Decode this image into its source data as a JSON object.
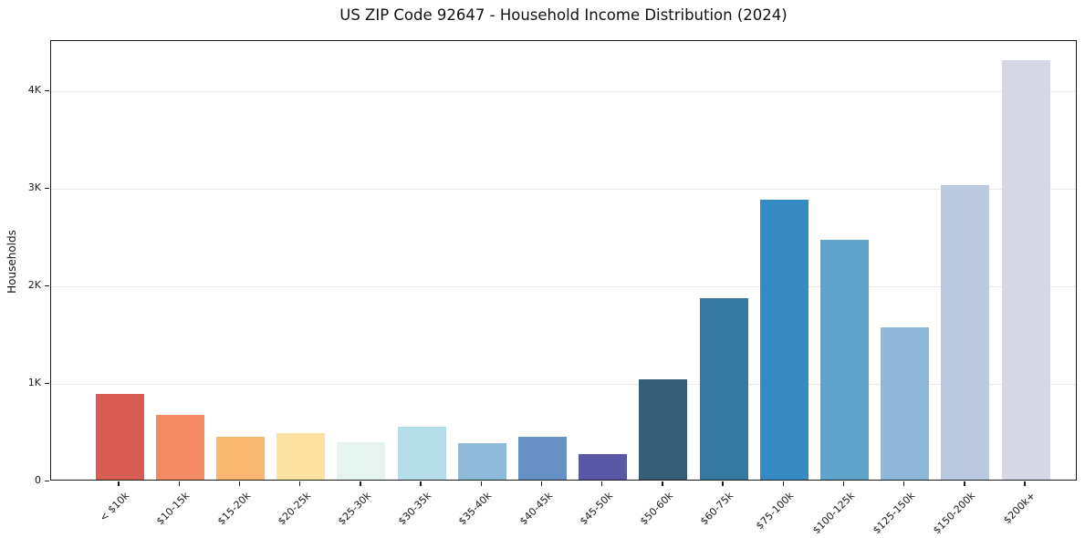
{
  "chart_data": {
    "type": "bar",
    "title": "US ZIP Code 92647 - Household Income Distribution (2024)",
    "xlabel": "",
    "ylabel": "Households",
    "categories": [
      "< $10k",
      "$10-15k",
      "$15-20k",
      "$20-25k",
      "$25-30k",
      "$30-35k",
      "$35-40k",
      "$40-45k",
      "$45-50k",
      "$50-60k",
      "$60-75k",
      "$75-100k",
      "$100-125k",
      "$125-150k",
      "$150-200k",
      "$200k+"
    ],
    "values": [
      880,
      665,
      440,
      480,
      385,
      540,
      370,
      440,
      265,
      1025,
      1860,
      2870,
      2455,
      1560,
      3020,
      4300
    ],
    "bar_colors": [
      "#d85c52",
      "#f48a63",
      "#f9b670",
      "#fce2a0",
      "#e6f4f0",
      "#b5dde8",
      "#8fbbd8",
      "#6791c4",
      "#5a57a7",
      "#365f75",
      "#377aa1",
      "#358ac2",
      "#5fa4ca",
      "#90b8da",
      "#bac8e0",
      "#d6d8e5"
    ],
    "ylim": [
      0,
      4515
    ],
    "yticks": [
      {
        "value": 0,
        "label": "0"
      },
      {
        "value": 1000,
        "label": "1K"
      },
      {
        "value": 2000,
        "label": "2K"
      },
      {
        "value": 3000,
        "label": "3K"
      },
      {
        "value": 4000,
        "label": "4K"
      }
    ],
    "grid": "horizontal",
    "grid_color": "#e9e9e9",
    "axis_color": "#1a1a1a",
    "background": "#ffffff",
    "x_tick_rotation": 45,
    "legend": "none"
  }
}
